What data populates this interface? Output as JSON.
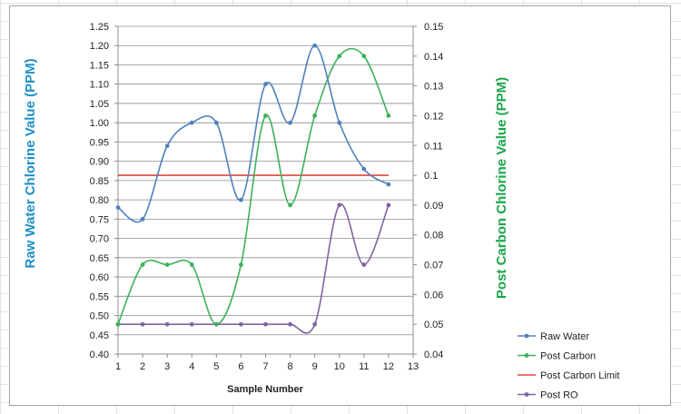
{
  "chart_data": {
    "type": "line",
    "title": "",
    "xlabel": "Sample Number",
    "ylabel": "Raw Water Chlorine Value (PPM)",
    "y2label": "Post Carbon Chlorine Value (PPM)",
    "x": [
      1,
      2,
      3,
      4,
      5,
      6,
      7,
      8,
      9,
      10,
      11,
      12
    ],
    "xlim": [
      1,
      13
    ],
    "x_ticks": [
      "1",
      "2",
      "3",
      "4",
      "5",
      "6",
      "7",
      "8",
      "9",
      "10",
      "11",
      "12",
      "13"
    ],
    "ylim": [
      0.4,
      1.25
    ],
    "y_ticks": [
      "0.40",
      "0.45",
      "0.50",
      "0.55",
      "0.60",
      "0.65",
      "0.70",
      "0.75",
      "0.80",
      "0.85",
      "0.90",
      "0.95",
      "1.00",
      "1.05",
      "1.10",
      "1.15",
      "1.20",
      "1.25"
    ],
    "y2lim": [
      0.04,
      0.15
    ],
    "y2_ticks": [
      "0.04",
      "0.05",
      "0.06",
      "0.07",
      "0.08",
      "0.09",
      "0.1",
      "0.11",
      "0.12",
      "0.13",
      "0.14",
      "0.15"
    ],
    "grid": true,
    "smooth": true,
    "legend_position": "bottom-right",
    "series": [
      {
        "name": "Raw Water",
        "axis": "left",
        "color": "#4f81bd",
        "markers": true,
        "values": [
          0.78,
          0.75,
          0.94,
          1.0,
          1.0,
          0.8,
          1.1,
          1.0,
          1.2,
          1.0,
          0.88,
          0.84
        ]
      },
      {
        "name": "Post Carbon",
        "axis": "right",
        "color": "#3cb15a",
        "markers": true,
        "values": [
          0.05,
          0.07,
          0.07,
          0.07,
          0.05,
          0.07,
          0.12,
          0.09,
          0.12,
          0.14,
          0.14,
          0.12
        ]
      },
      {
        "name": "Post Carbon Limit",
        "axis": "right",
        "color": "#e2463c",
        "markers": false,
        "values": [
          0.1,
          0.1,
          0.1,
          0.1,
          0.1,
          0.1,
          0.1,
          0.1,
          0.1,
          0.1,
          0.1,
          0.1
        ]
      },
      {
        "name": "Post RO",
        "axis": "right",
        "color": "#8064a2",
        "markers": true,
        "values": [
          0.05,
          0.05,
          0.05,
          0.05,
          0.05,
          0.05,
          0.05,
          0.05,
          0.05,
          0.09,
          0.07,
          0.09
        ]
      }
    ]
  }
}
